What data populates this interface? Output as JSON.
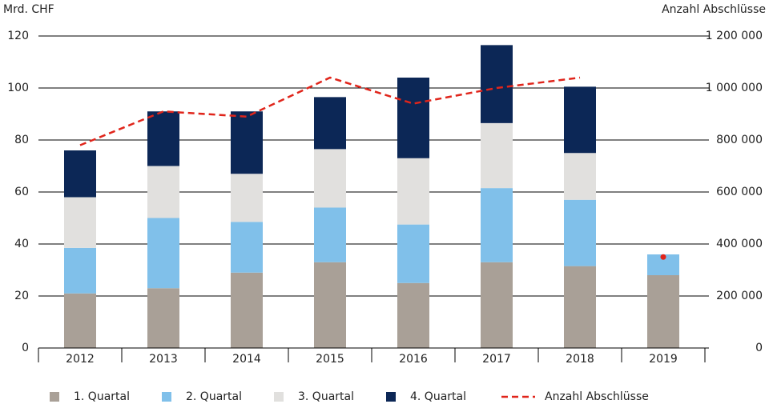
{
  "chart_data": {
    "type": "bar",
    "stacked": true,
    "y_label": "Mrd. CHF",
    "y2_label": "Anzahl Abschlüsse",
    "categories": [
      "2012",
      "2013",
      "2014",
      "2015",
      "2016",
      "2017",
      "2018",
      "2019"
    ],
    "series": [
      {
        "name": "1. Quartal",
        "color": "#a9a097",
        "values": [
          21,
          23,
          29,
          33,
          25,
          33,
          31.5,
          28
        ]
      },
      {
        "name": "2. Quartal",
        "color": "#80c0ea",
        "values": [
          17.5,
          27,
          19.5,
          21,
          22.5,
          28.5,
          25.5,
          8
        ]
      },
      {
        "name": "3. Quartal",
        "color": "#e1e0de",
        "values": [
          19.5,
          20,
          18.5,
          22.5,
          25.5,
          25,
          18,
          null
        ]
      },
      {
        "name": "4. Quartal",
        "color": "#0c2756",
        "values": [
          18,
          21,
          24,
          20,
          31,
          30,
          25.5,
          null
        ]
      },
      {
        "name": "Anzahl Abschlüsse",
        "type": "line",
        "axis": "y2",
        "color": "#e0251b",
        "dashed": true,
        "values": [
          780000,
          910000,
          890000,
          1040000,
          940000,
          1000000,
          1040000,
          null
        ]
      },
      {
        "type": "point",
        "axis": "y2",
        "color": "#e0251b",
        "values": [
          null,
          null,
          null,
          null,
          null,
          null,
          null,
          350000
        ]
      }
    ],
    "ylim": [
      0,
      120
    ],
    "yticks": [
      0,
      20,
      40,
      60,
      80,
      100,
      120
    ],
    "y2lim": [
      0,
      1200000
    ],
    "y2ticks": [
      0,
      {
        "value": 200000,
        "label": "200 000"
      },
      {
        "value": 400000,
        "label": "400 000"
      },
      {
        "value": 600000,
        "label": "600 000"
      },
      {
        "value": 800000,
        "label": "800 000"
      },
      {
        "value": 1000000,
        "label": "1 000 000"
      },
      {
        "value": 1200000,
        "label": "1 200 000"
      }
    ],
    "grid": true,
    "legend": "bottom"
  }
}
